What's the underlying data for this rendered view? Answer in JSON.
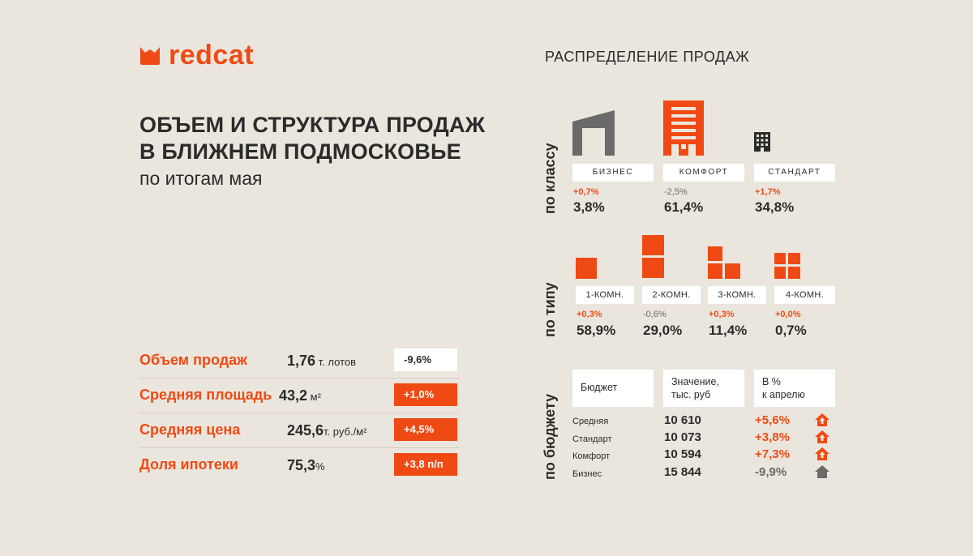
{
  "brand": {
    "name": "redcat",
    "accent": "#f04a14"
  },
  "header": {
    "title_line1": "ОБЪЕМ И СТРУКТУРА ПРОДАЖ",
    "title_line2": "В БЛИЖНЕМ ПОДМОСКОВЬЕ",
    "subtitle": "по итогам мая"
  },
  "metrics": [
    {
      "label": "Объем продаж",
      "value": "1,76",
      "unit": " т. лотов",
      "change": "-9,6%",
      "trend": "neutral"
    },
    {
      "label": "Средняя площадь",
      "value": "43,2",
      "unit": " м²",
      "change": "+1,0%",
      "trend": "up"
    },
    {
      "label": "Средняя цена",
      "value": "245,6",
      "unit": "т. руб./м²",
      "change": "+4,5%",
      "trend": "up"
    },
    {
      "label": "Доля ипотеки",
      "value": "75,3",
      "unit": "%",
      "change": "+3,8 п/п",
      "trend": "up"
    }
  ],
  "distribution": {
    "title": "РАСПРЕДЕЛЕНИЕ ПРОДАЖ",
    "by_class": {
      "label": "по классу",
      "items": [
        {
          "name": "БИЗНЕС",
          "change": "+0,7%",
          "trend": "up",
          "share": "3,8%",
          "icon": "business-building-icon"
        },
        {
          "name": "КОМФОРТ",
          "change": "-2,5%",
          "trend": "down",
          "share": "61,4%",
          "icon": "comfort-building-icon"
        },
        {
          "name": "СТАНДАРТ",
          "change": "+1,7%",
          "trend": "up",
          "share": "34,8%",
          "icon": "standard-building-icon"
        }
      ]
    },
    "by_type": {
      "label": "по типу",
      "items": [
        {
          "name": "1-КОМН.",
          "change": "+0,3%",
          "trend": "up",
          "share": "58,9%",
          "icon": "one-room-icon"
        },
        {
          "name": "2-КОМН.",
          "change": "-0,6%",
          "trend": "down",
          "share": "29,0%",
          "icon": "two-room-icon"
        },
        {
          "name": "3-КОМН.",
          "change": "+0,3%",
          "trend": "up",
          "share": "11,4%",
          "icon": "three-room-icon"
        },
        {
          "name": "4-КОМН.",
          "change": "+0,0%",
          "trend": "up",
          "share": "0,7%",
          "icon": "four-room-icon"
        }
      ]
    },
    "by_budget": {
      "label": "по бюджету",
      "headers": {
        "budget": "Бюджет",
        "value_line1": "Значение,",
        "value_line2": "тыс. руб",
        "pct_line1": "В %",
        "pct_line2": "к апрелю"
      },
      "rows": [
        {
          "label": "Средняя",
          "value": "10 610",
          "change": "+5,6%",
          "trend": "up",
          "icon": "house-up-icon"
        },
        {
          "label": "Стандарт",
          "value": "10 073",
          "change": "+3,8%",
          "trend": "up",
          "icon": "house-up-icon"
        },
        {
          "label": "Комфорт",
          "value": "10 594",
          "change": "+7,3%",
          "trend": "up",
          "icon": "house-up-icon"
        },
        {
          "label": "Бизнес",
          "value": "15 844",
          "change": "-9,9%",
          "trend": "down",
          "icon": "house-down-icon"
        }
      ]
    }
  },
  "colors": {
    "background": "#ebe6dd",
    "accent": "#f04a14",
    "neutral": "#6a6a6a",
    "text": "#2b2b2b"
  }
}
